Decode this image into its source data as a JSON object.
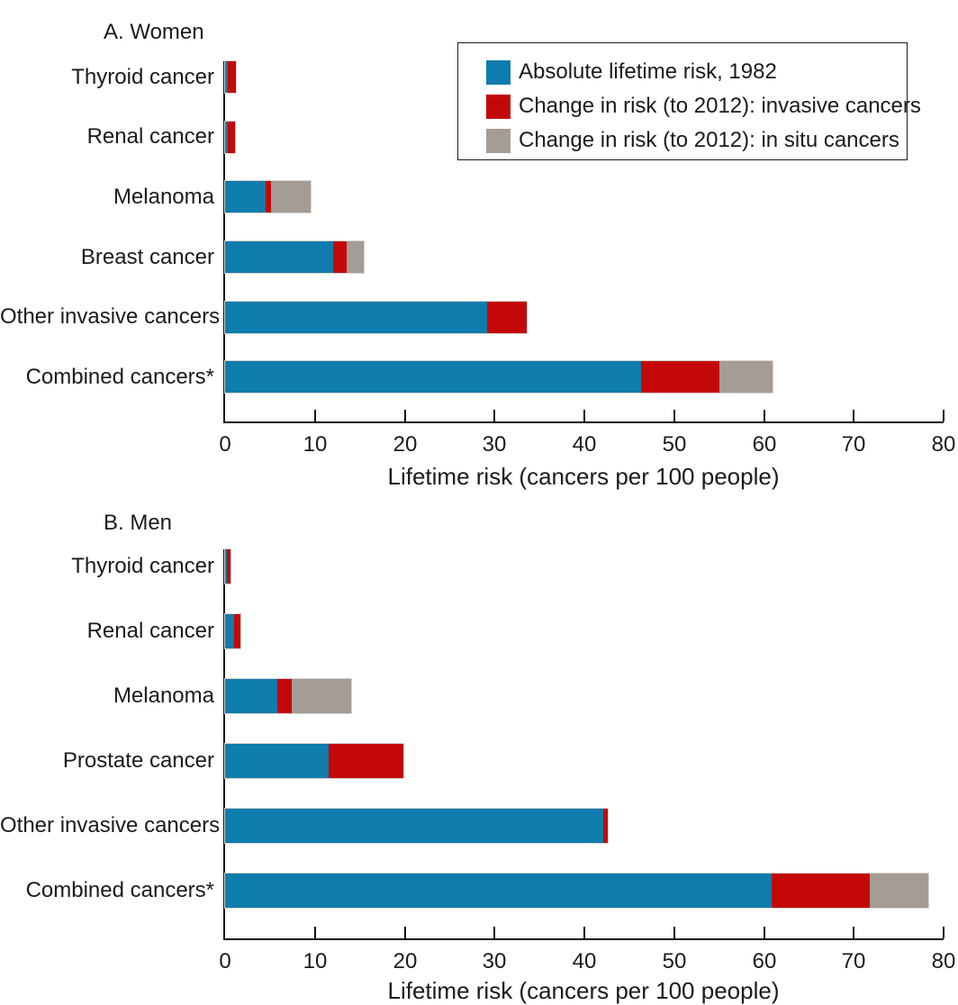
{
  "figure": {
    "legend": {
      "items": [
        {
          "label": "Absolute lifetime risk, 1982",
          "color": "#0E7CAC"
        },
        {
          "label": "Change in risk (to 2012): invasive cancers",
          "color": "#C40808"
        },
        {
          "label": "Change in risk (to 2012): in situ cancers",
          "color": "#A49C95"
        }
      ]
    }
  },
  "chart_data": [
    {
      "type": "bar",
      "orientation": "horizontal-stacked",
      "title": "A. Women",
      "categories": [
        "Thyroid cancer",
        "Renal cancer",
        "Melanoma",
        "Breast cancer",
        "Other invasive cancers",
        "Combined cancers*"
      ],
      "series": [
        {
          "name": "Absolute lifetime risk, 1982",
          "color": "#0E7CAC",
          "values": [
            0.3,
            0.3,
            4.5,
            12.0,
            29.2,
            46.3
          ]
        },
        {
          "name": "Change in risk (to 2012): invasive cancers",
          "color": "#C40808",
          "values": [
            0.9,
            0.8,
            0.6,
            1.5,
            4.4,
            8.7
          ]
        },
        {
          "name": "Change in risk (to 2012): in situ cancers",
          "color": "#A49C95",
          "values": [
            0,
            0,
            4.4,
            1.9,
            0,
            6.0
          ]
        }
      ],
      "xlabel": "Lifetime risk (cancers per 100 people)",
      "xlim": [
        0,
        80
      ],
      "xticks": [
        0,
        10,
        20,
        30,
        40,
        50,
        60,
        70,
        80
      ],
      "grid": false,
      "legend_position": "top-right"
    },
    {
      "type": "bar",
      "orientation": "horizontal-stacked",
      "title": "B. Men",
      "categories": [
        "Thyroid cancer",
        "Renal cancer",
        "Melanoma",
        "Prostate cancer",
        "Other invasive cancers",
        "Combined cancers*"
      ],
      "series": [
        {
          "name": "Absolute lifetime risk, 1982",
          "color": "#0E7CAC",
          "values": [
            0.25,
            1.0,
            5.8,
            11.5,
            42.1,
            60.9
          ]
        },
        {
          "name": "Change in risk (to 2012): invasive cancers",
          "color": "#C40808",
          "values": [
            0.4,
            0.75,
            1.6,
            8.4,
            0.5,
            10.9
          ]
        },
        {
          "name": "Change in risk (to 2012): in situ cancers",
          "color": "#A49C95",
          "values": [
            0,
            0,
            6.6,
            0,
            0,
            6.5
          ]
        }
      ],
      "xlabel": "Lifetime risk (cancers per 100 people)",
      "xlim": [
        0,
        80
      ],
      "xticks": [
        0,
        10,
        20,
        30,
        40,
        50,
        60,
        70,
        80
      ],
      "grid": false,
      "legend_position": "none"
    }
  ]
}
